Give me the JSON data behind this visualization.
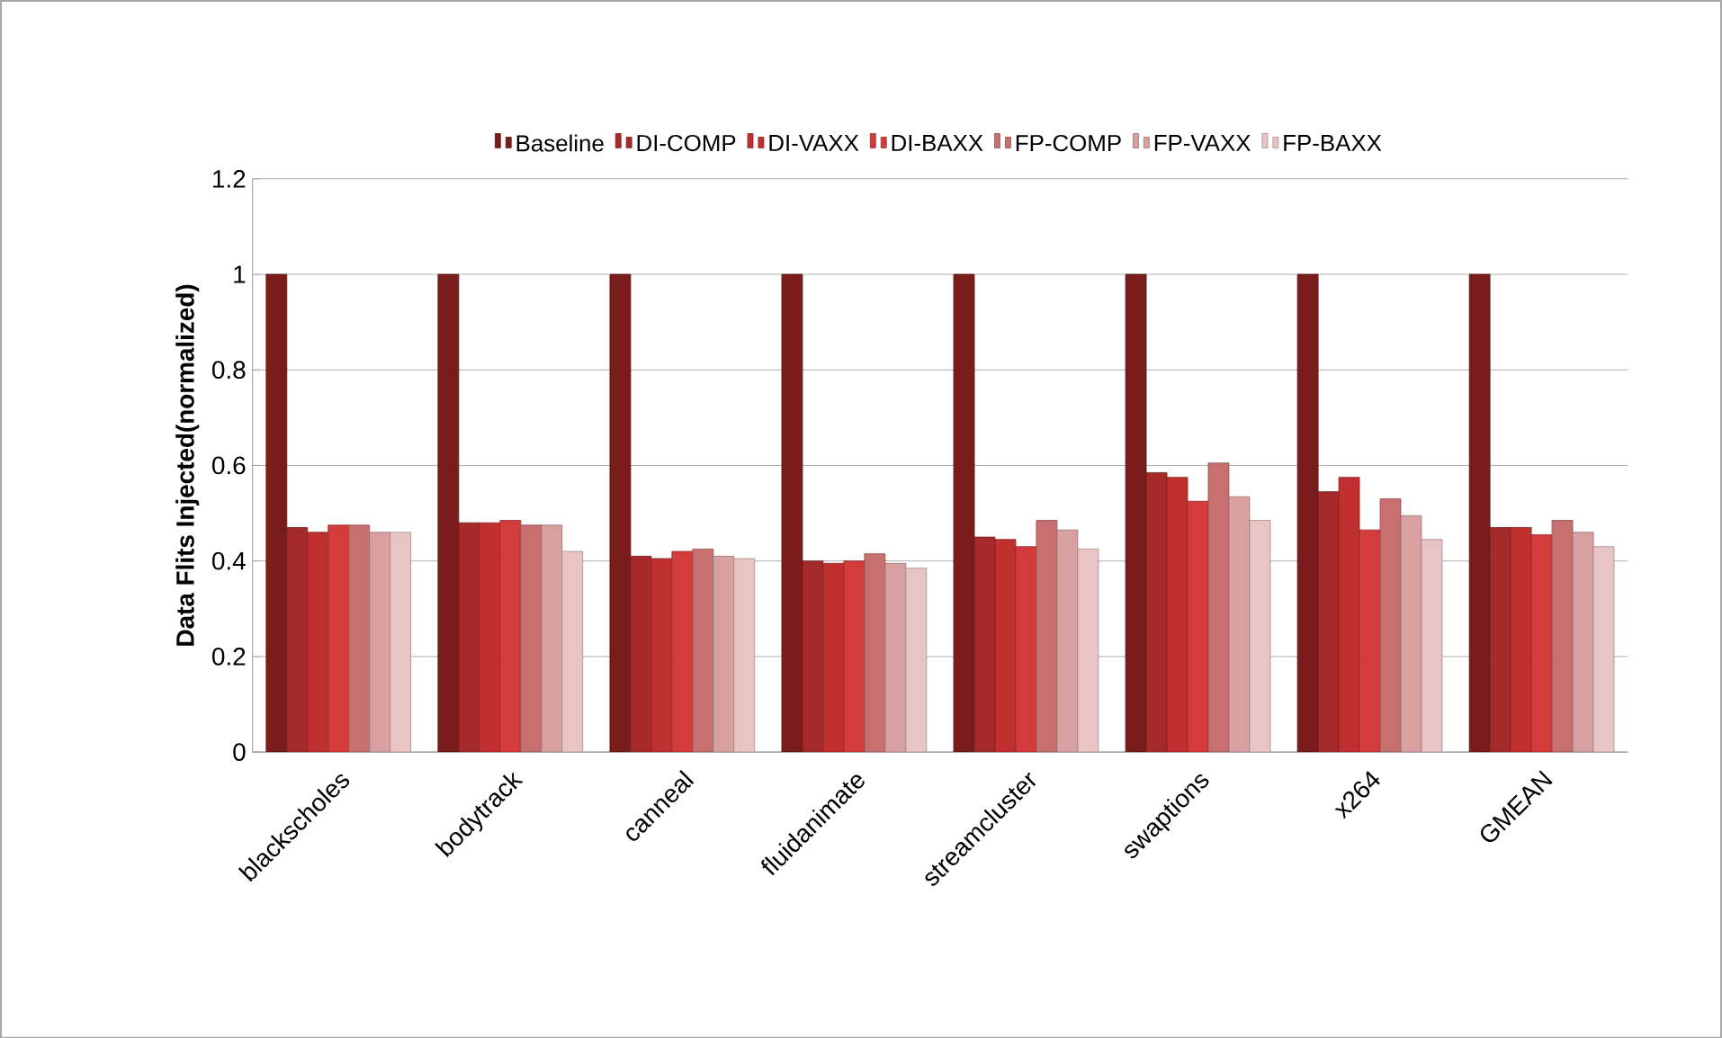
{
  "chart_data": {
    "type": "bar",
    "ylabel": "Data Flits Injected(normalized)",
    "categories": [
      "blackscholes",
      "bodytrack",
      "canneal",
      "fluidanimate",
      "streamcluster",
      "swaptions",
      "x264",
      "GMEAN"
    ],
    "series": [
      {
        "name": "Baseline",
        "color": "#7b1c1c",
        "values": [
          1,
          1,
          1,
          1,
          1,
          1,
          1,
          1
        ]
      },
      {
        "name": "DI-COMP",
        "color": "#a52a2a",
        "values": [
          0.47,
          0.48,
          0.41,
          0.4,
          0.45,
          0.585,
          0.545,
          0.47
        ]
      },
      {
        "name": "DI-VAXX",
        "color": "#c0302e",
        "values": [
          0.46,
          0.48,
          0.405,
          0.395,
          0.445,
          0.575,
          0.575,
          0.47
        ]
      },
      {
        "name": "DI-BAXX",
        "color": "#d43c3c",
        "values": [
          0.475,
          0.485,
          0.42,
          0.4,
          0.43,
          0.525,
          0.465,
          0.455
        ]
      },
      {
        "name": "FP-COMP",
        "color": "#c87070",
        "values": [
          0.475,
          0.475,
          0.425,
          0.415,
          0.485,
          0.605,
          0.53,
          0.485
        ]
      },
      {
        "name": "FP-VAXX",
        "color": "#d8a0a0",
        "values": [
          0.46,
          0.475,
          0.41,
          0.395,
          0.465,
          0.535,
          0.495,
          0.46
        ]
      },
      {
        "name": "FP-BAXX",
        "color": "#e8c4c4",
        "values": [
          0.46,
          0.42,
          0.405,
          0.385,
          0.425,
          0.485,
          0.445,
          0.43
        ]
      }
    ],
    "ylim": [
      0,
      1.2
    ],
    "yticks": [
      0,
      0.2,
      0.4,
      0.6,
      0.8,
      1,
      1.2
    ],
    "grid": "y",
    "legend": "top"
  }
}
